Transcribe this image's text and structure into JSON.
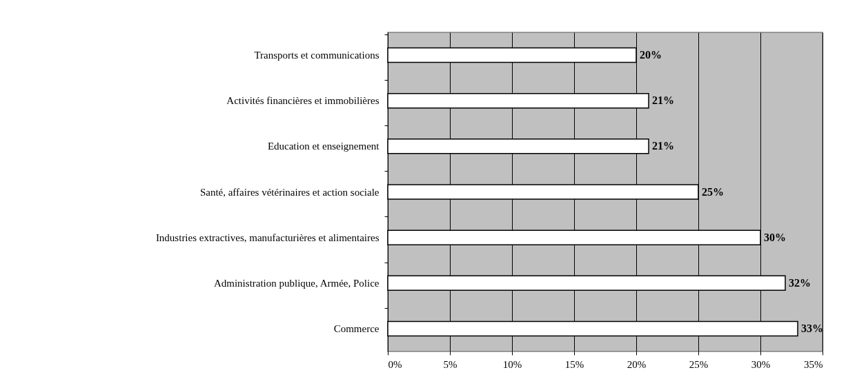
{
  "chart_data": {
    "type": "bar",
    "orientation": "horizontal",
    "categories": [
      "Transports et communications",
      "Activités financières et immobilières",
      "Education et enseignement",
      "Santé, affaires vétérinaires et action sociale",
      "Industries extractives, manufacturières et alimentaires",
      "Administration publique, Armée, Police",
      "Commerce"
    ],
    "values": [
      20,
      21,
      21,
      25,
      30,
      32,
      33
    ],
    "value_labels": [
      "20%",
      "21%",
      "21%",
      "25%",
      "30%",
      "32%",
      "33%"
    ],
    "color": "#ffffff",
    "xlim": [
      0,
      35
    ],
    "xticks": [
      {
        "value": 0,
        "label": "0%"
      },
      {
        "value": 5,
        "label": "5%"
      },
      {
        "value": 10,
        "label": "10%"
      },
      {
        "value": 15,
        "label": "15%"
      },
      {
        "value": 20,
        "label": "20%"
      },
      {
        "value": 25,
        "label": "25%"
      },
      {
        "value": 30,
        "label": "30%"
      },
      {
        "value": 35,
        "label": "35%"
      }
    ],
    "grid": "x",
    "legend": false
  }
}
